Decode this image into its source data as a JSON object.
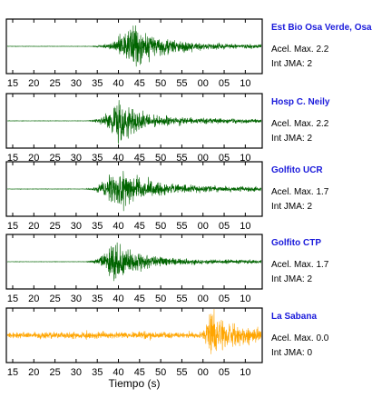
{
  "chart_data": {
    "type": "line",
    "xlabel": "Tiempo (s)",
    "x_tick_labels": [
      "15",
      "20",
      "25",
      "30",
      "35",
      "40",
      "45",
      "50",
      "55",
      "00",
      "05",
      "10"
    ],
    "x_tick_seconds": [
      15,
      20,
      25,
      30,
      35,
      40,
      45,
      50,
      55,
      60,
      65,
      70
    ],
    "xlim": [
      13.5,
      74
    ],
    "grid": false,
    "panels": [
      {
        "station": "Est Bio Osa Verde, Osa",
        "accel_text": "Acel. Max. 2.2",
        "jma_text": "Int JMA: 2",
        "color": "#006400",
        "onset": 34.0,
        "peak_time": 43.0,
        "decay": 7.0,
        "tail_amp": 0.08,
        "pre_noise": 0.008
      },
      {
        "station": "Hosp C. Neily",
        "accel_text": "Acel. Max. 2.2",
        "jma_text": "Int JMA: 2",
        "color": "#006400",
        "onset": 33.0,
        "peak_time": 39.5,
        "decay": 6.0,
        "tail_amp": 0.1,
        "pre_noise": 0.008
      },
      {
        "station": "Golfito UCR",
        "accel_text": "Acel. Max. 1.7",
        "jma_text": "Int JMA: 2",
        "color": "#006400",
        "onset": 32.5,
        "peak_time": 38.5,
        "decay": 7.5,
        "tail_amp": 0.1,
        "pre_noise": 0.008
      },
      {
        "station": "Golfito CTP",
        "accel_text": "Acel. Max. 1.7",
        "jma_text": "Int JMA: 2",
        "color": "#006400",
        "onset": 32.5,
        "peak_time": 39.0,
        "decay": 6.0,
        "tail_amp": 0.08,
        "pre_noise": 0.008
      },
      {
        "station": "La Sabana",
        "accel_text": "Acel. Max. 0.0",
        "jma_text": "Int JMA: 0",
        "color": "#ffa500",
        "noise_amp": 0.18,
        "burst_start": 60.0,
        "burst_peak": 61.5,
        "burst_amp": 0.95,
        "burst_decay": 6.0
      }
    ]
  }
}
